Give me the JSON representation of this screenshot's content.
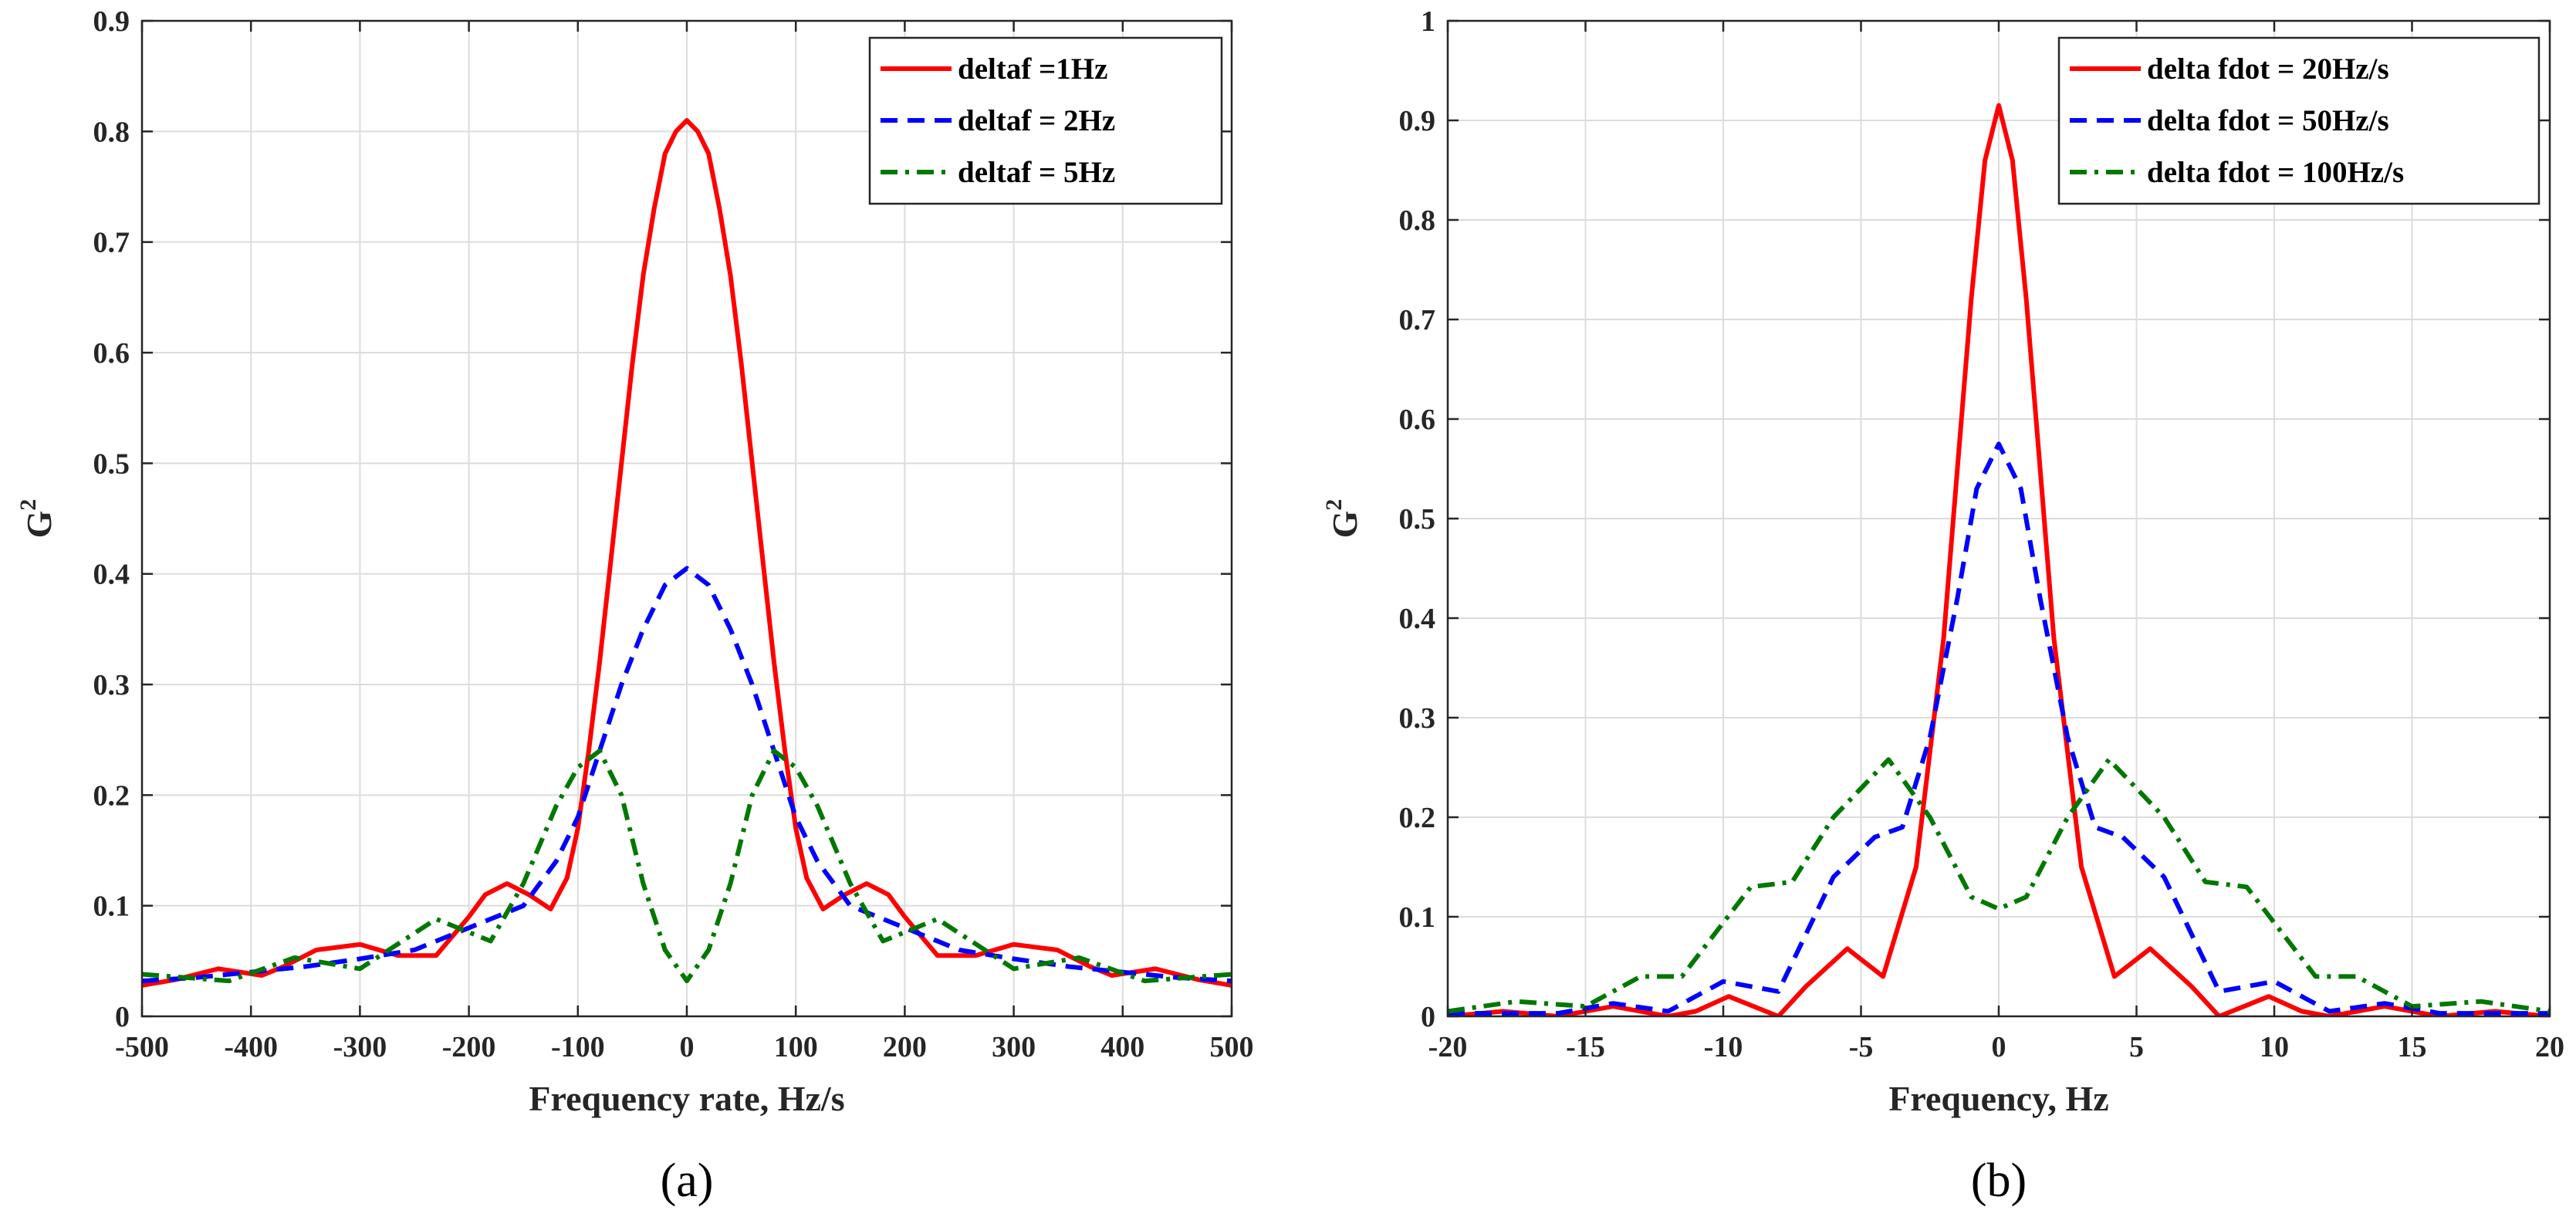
{
  "chart_data": [
    {
      "type": "line",
      "panel_label": "(a)",
      "title": "",
      "xlabel": "Frequency rate, Hz/s",
      "ylabel": "G",
      "ylabel_superscript": "2",
      "xlim": [
        -500,
        500
      ],
      "ylim": [
        0,
        0.9
      ],
      "xticks": [
        -500,
        -400,
        -300,
        -200,
        -100,
        0,
        100,
        200,
        300,
        400,
        500
      ],
      "xtick_labels": [
        "-500",
        "-400",
        "-300",
        "-200",
        "-100",
        "0",
        "100",
        "200",
        "300",
        "400",
        "500"
      ],
      "yticks": [
        0,
        0.1,
        0.2,
        0.3,
        0.4,
        0.5,
        0.6,
        0.7,
        0.8,
        0.9
      ],
      "ytick_labels": [
        "0",
        "0.1",
        "0.2",
        "0.3",
        "0.4",
        "0.5",
        "0.6",
        "0.7",
        "0.8",
        "0.9"
      ],
      "grid": true,
      "legend_position": "top-right",
      "series": [
        {
          "name": "deltaf =1Hz",
          "color": "#ff0000",
          "style": "solid",
          "x": [
            -500,
            -470,
            -430,
            -390,
            -370,
            -340,
            -300,
            -265,
            -230,
            -200,
            -185,
            -165,
            -145,
            -125,
            -110,
            -100,
            -90,
            -80,
            -70,
            -60,
            -50,
            -40,
            -30,
            -20,
            -10,
            0,
            10,
            20,
            30,
            40,
            50,
            60,
            70,
            80,
            90,
            100,
            110,
            125,
            145,
            165,
            185,
            200,
            230,
            265,
            300,
            340,
            370,
            390,
            430,
            470,
            500
          ],
          "y": [
            0.028,
            0.033,
            0.043,
            0.037,
            0.045,
            0.06,
            0.065,
            0.055,
            0.055,
            0.09,
            0.11,
            0.12,
            0.11,
            0.097,
            0.125,
            0.17,
            0.24,
            0.32,
            0.41,
            0.5,
            0.59,
            0.67,
            0.73,
            0.78,
            0.8,
            0.81,
            0.8,
            0.78,
            0.73,
            0.67,
            0.59,
            0.5,
            0.41,
            0.32,
            0.24,
            0.17,
            0.125,
            0.097,
            0.11,
            0.12,
            0.11,
            0.09,
            0.055,
            0.055,
            0.065,
            0.06,
            0.045,
            0.037,
            0.043,
            0.033,
            0.028
          ]
        },
        {
          "name": "deltaf = 2Hz",
          "color": "#0000ff",
          "style": "dashed",
          "x": [
            -500,
            -450,
            -400,
            -350,
            -300,
            -250,
            -200,
            -150,
            -120,
            -100,
            -80,
            -60,
            -40,
            -20,
            0,
            20,
            40,
            60,
            80,
            100,
            120,
            150,
            200,
            250,
            300,
            350,
            400,
            450,
            500
          ],
          "y": [
            0.032,
            0.035,
            0.04,
            0.045,
            0.052,
            0.06,
            0.08,
            0.1,
            0.14,
            0.18,
            0.24,
            0.3,
            0.35,
            0.39,
            0.405,
            0.39,
            0.35,
            0.3,
            0.24,
            0.18,
            0.14,
            0.1,
            0.08,
            0.06,
            0.052,
            0.045,
            0.04,
            0.035,
            0.032
          ]
        },
        {
          "name": "deltaf = 5Hz",
          "color": "#007800",
          "style": "dashdot",
          "x": [
            -500,
            -420,
            -360,
            -300,
            -230,
            -180,
            -150,
            -120,
            -100,
            -80,
            -60,
            -40,
            -20,
            0,
            20,
            40,
            60,
            80,
            100,
            120,
            150,
            180,
            230,
            300,
            360,
            420,
            500
          ],
          "y": [
            0.038,
            0.032,
            0.053,
            0.043,
            0.088,
            0.068,
            0.12,
            0.19,
            0.225,
            0.24,
            0.2,
            0.12,
            0.06,
            0.032,
            0.06,
            0.12,
            0.2,
            0.24,
            0.225,
            0.19,
            0.12,
            0.068,
            0.088,
            0.043,
            0.053,
            0.032,
            0.038
          ]
        }
      ]
    },
    {
      "type": "line",
      "panel_label": "(b)",
      "title": "",
      "xlabel": "Frequency, Hz",
      "ylabel": "G",
      "ylabel_superscript": "2",
      "xlim": [
        -20,
        20
      ],
      "ylim": [
        0,
        1
      ],
      "xticks": [
        -20,
        -15,
        -10,
        -5,
        0,
        5,
        10,
        15,
        20
      ],
      "xtick_labels": [
        "-20",
        "-15",
        "-10",
        "-5",
        "0",
        "5",
        "10",
        "15",
        "20"
      ],
      "yticks": [
        0,
        0.1,
        0.2,
        0.3,
        0.4,
        0.5,
        0.6,
        0.7,
        0.8,
        0.9,
        1.0
      ],
      "ytick_labels": [
        "0",
        "0.1",
        "0.2",
        "0.3",
        "0.4",
        "0.5",
        "0.6",
        "0.7",
        "0.8",
        "0.9",
        "1"
      ],
      "grid": true,
      "legend_position": "top-right",
      "series": [
        {
          "name": "delta fdot = 20Hz/s",
          "color": "#ff0000",
          "style": "solid",
          "x": [
            -20,
            -18,
            -16,
            -14,
            -12,
            -11,
            -9.8,
            -8,
            -7,
            -5.5,
            -4.2,
            -3,
            -2,
            -1.5,
            -1,
            -0.5,
            0,
            0.5,
            1,
            1.5,
            2,
            3,
            4.2,
            5.5,
            7,
            8,
            9.8,
            11,
            12,
            14,
            16,
            18,
            20
          ],
          "y": [
            0.0,
            0.005,
            0.0,
            0.01,
            0.0,
            0.005,
            0.02,
            0.0,
            0.03,
            0.068,
            0.04,
            0.15,
            0.38,
            0.55,
            0.72,
            0.86,
            0.915,
            0.86,
            0.72,
            0.55,
            0.38,
            0.15,
            0.04,
            0.068,
            0.03,
            0.0,
            0.02,
            0.005,
            0.0,
            0.01,
            0.0,
            0.005,
            0.0
          ]
        },
        {
          "name": "delta fdot = 50Hz/s",
          "color": "#0000ff",
          "style": "dashed",
          "x": [
            -20,
            -16,
            -14,
            -12,
            -10,
            -8,
            -6,
            -4.5,
            -3.5,
            -2.5,
            -1.5,
            -0.8,
            0,
            0.8,
            1.5,
            2.5,
            3.5,
            4.5,
            6,
            8,
            10,
            12,
            14,
            16,
            20
          ],
          "y": [
            0.003,
            0.003,
            0.013,
            0.005,
            0.035,
            0.025,
            0.14,
            0.18,
            0.19,
            0.28,
            0.42,
            0.53,
            0.575,
            0.53,
            0.42,
            0.28,
            0.19,
            0.18,
            0.14,
            0.025,
            0.035,
            0.005,
            0.013,
            0.003,
            0.003
          ]
        },
        {
          "name": "delta fdot = 100Hz/s",
          "color": "#007800",
          "style": "dashdot",
          "x": [
            -20,
            -17.5,
            -15,
            -13,
            -11.5,
            -9,
            -7.5,
            -6,
            -4,
            -2.5,
            -1,
            0,
            1,
            2.5,
            4,
            6,
            7.5,
            9,
            11.5,
            13,
            15,
            17.5,
            20
          ],
          "y": [
            0.005,
            0.015,
            0.01,
            0.04,
            0.04,
            0.13,
            0.135,
            0.2,
            0.258,
            0.2,
            0.12,
            0.108,
            0.12,
            0.2,
            0.258,
            0.2,
            0.135,
            0.13,
            0.04,
            0.04,
            0.01,
            0.015,
            0.005
          ]
        }
      ]
    }
  ]
}
